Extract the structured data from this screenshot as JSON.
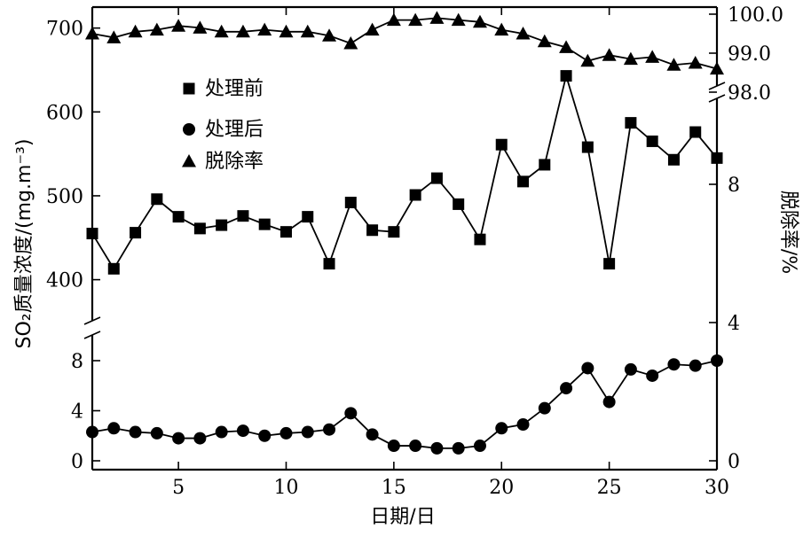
{
  "chart_data": {
    "type": "line",
    "xlabel": "日期/日",
    "ylabel_left": "SO₂质量浓度/(mg.m⁻³)",
    "ylabel_right": "脱除率/%",
    "x": [
      1,
      2,
      3,
      4,
      5,
      6,
      7,
      8,
      9,
      10,
      11,
      12,
      13,
      14,
      15,
      16,
      17,
      18,
      19,
      20,
      21,
      22,
      23,
      24,
      25,
      26,
      27,
      28,
      29,
      30
    ],
    "xlim": [
      1,
      30
    ],
    "xticks": [
      5,
      10,
      15,
      20,
      25,
      30
    ],
    "left_axis_upper": {
      "ylim": [
        370,
        725
      ],
      "ticks": [
        400,
        500,
        600,
        700
      ]
    },
    "left_axis_lower": {
      "ylim": [
        0,
        10
      ],
      "ticks": [
        0,
        4,
        8
      ]
    },
    "right_axis_upper": {
      "ylim": [
        98.0,
        100.0
      ],
      "ticks": [
        "98.0",
        "99.0",
        "100.0"
      ]
    },
    "right_axis_lower": {
      "ylim": [
        0,
        10
      ],
      "ticks": [
        0,
        4,
        8
      ]
    },
    "series": [
      {
        "name": "处理前",
        "marker": "square",
        "axis": "left_upper",
        "values": [
          455,
          413,
          456,
          496,
          475,
          461,
          465,
          476,
          466,
          457,
          475,
          419,
          492,
          459,
          457,
          501,
          521,
          490,
          448,
          561,
          517,
          537,
          643,
          558,
          419,
          587,
          565,
          543,
          576,
          545
        ]
      },
      {
        "name": "处理后",
        "marker": "circle",
        "axis": "left_lower",
        "values": [
          2.3,
          2.6,
          2.3,
          2.2,
          1.8,
          1.8,
          2.3,
          2.4,
          2.0,
          2.2,
          2.3,
          2.5,
          3.8,
          2.1,
          1.2,
          1.2,
          1.0,
          1.0,
          1.2,
          2.6,
          2.9,
          4.2,
          5.8,
          7.4,
          4.7,
          7.3,
          6.8,
          7.7,
          7.6,
          8.0
        ]
      },
      {
        "name": "脱除率",
        "marker": "triangle",
        "axis": "right_upper",
        "values": [
          99.5,
          99.4,
          99.55,
          99.6,
          99.7,
          99.65,
          99.55,
          99.55,
          99.6,
          99.55,
          99.55,
          99.45,
          99.25,
          99.6,
          99.85,
          99.85,
          99.9,
          99.85,
          99.8,
          99.6,
          99.5,
          99.3,
          99.15,
          98.8,
          98.95,
          98.85,
          98.9,
          98.7,
          98.75,
          98.6
        ]
      }
    ],
    "legend": {
      "position": "upper-left",
      "entries": [
        "处理前",
        "处理后",
        "脱除率"
      ]
    }
  }
}
